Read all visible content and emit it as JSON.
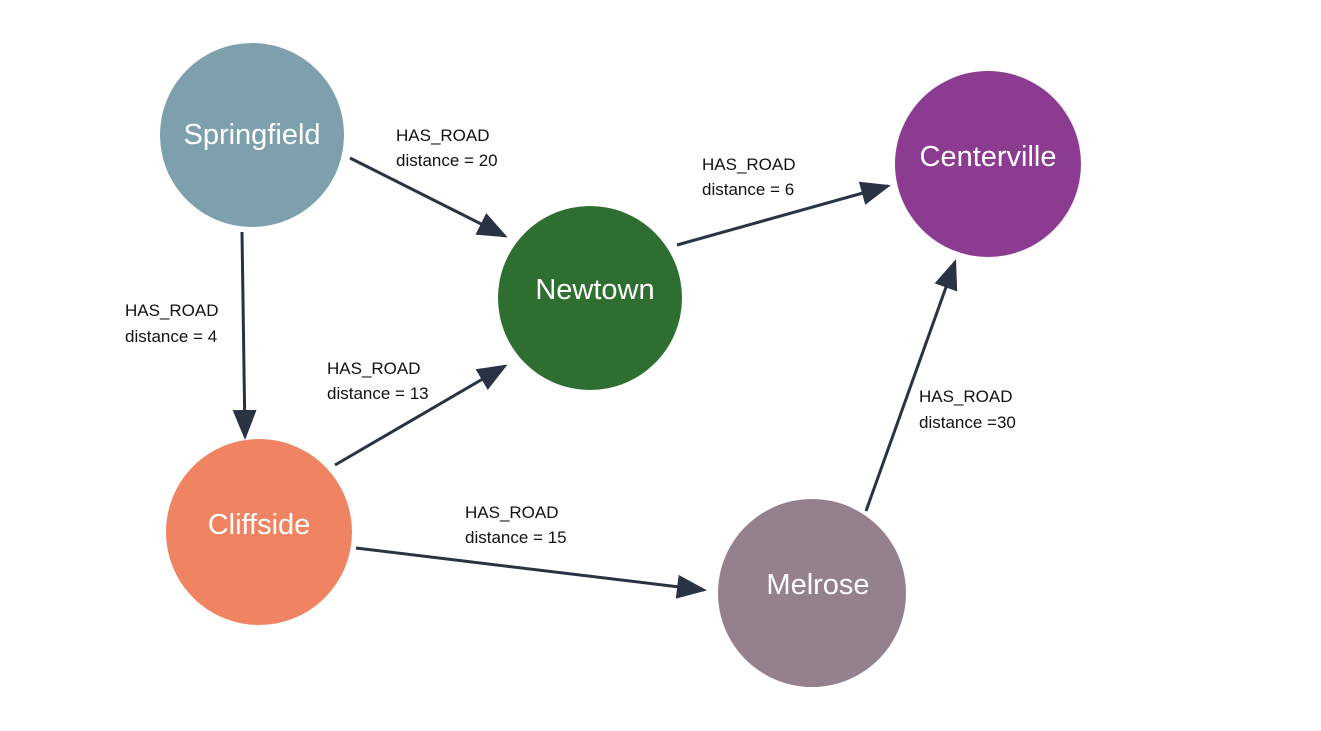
{
  "nodes": {
    "springfield": {
      "label": "Springfield",
      "color": "#7ea0ad"
    },
    "newtown": {
      "label": "Newtown",
      "color": "#2e6f31"
    },
    "centerville": {
      "label": "Centerville",
      "color": "#8b3c91"
    },
    "cliffside": {
      "label": "Cliffside",
      "color": "#f08462"
    },
    "melrose": {
      "label": "Melrose",
      "color": "#95808d"
    }
  },
  "edges": [
    {
      "id": "springfield-newtown",
      "from": "Springfield",
      "to": "Newtown",
      "type": "HAS_ROAD",
      "distance": "distance = 20"
    },
    {
      "id": "newtown-centerville",
      "from": "Newtown",
      "to": "Centerville",
      "type": "HAS_ROAD",
      "distance": "distance = 6"
    },
    {
      "id": "springfield-cliffside",
      "from": "Springfield",
      "to": "Cliffside",
      "type": "HAS_ROAD",
      "distance": "distance = 4"
    },
    {
      "id": "cliffside-newtown",
      "from": "Cliffside",
      "to": "Newtown",
      "type": "HAS_ROAD",
      "distance": "distance = 13"
    },
    {
      "id": "cliffside-melrose",
      "from": "Cliffside",
      "to": "Melrose",
      "type": "HAS_ROAD",
      "distance": "distance = 15"
    },
    {
      "id": "melrose-centerville",
      "from": "Melrose",
      "to": "Centerville",
      "type": "HAS_ROAD",
      "distance": "distance =30"
    }
  ],
  "colors": {
    "edge": "#2a3344",
    "edge_label": "#111111",
    "node_text": "#ffffff"
  }
}
